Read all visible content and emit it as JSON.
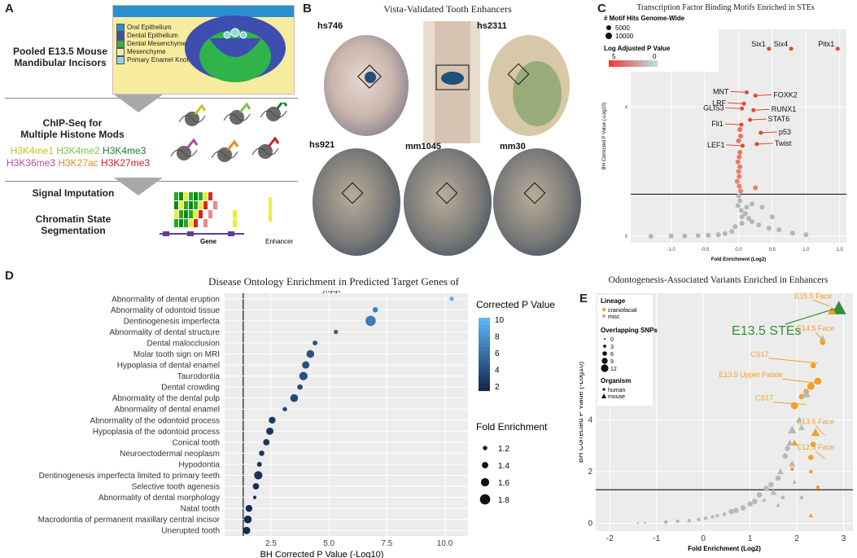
{
  "panel_letters": [
    "A",
    "B",
    "C",
    "D",
    "E"
  ],
  "panelA": {
    "title_line1": "Pooled E13.5 Mouse",
    "title_line2": "Mandibular Incisors",
    "legend": [
      {
        "label": "Oral Epithelium",
        "color": "#2a8fd0"
      },
      {
        "label": "Dental Epithelium",
        "color": "#3d4db0"
      },
      {
        "label": "Dental Mesenchyme",
        "color": "#2fb34a"
      },
      {
        "label": "Mesenchyme",
        "color": "#f7ec9e"
      },
      {
        "label": "Primary Enamel Knot",
        "color": "#8fd3e8"
      }
    ],
    "chip_line1": "ChIP-Seq for",
    "chip_line2": "Multiple Histone Mods",
    "marks": [
      {
        "label": "H3K4me1",
        "color": "#c8c21a"
      },
      {
        "label": "H3K4me2",
        "color": "#7cc04a"
      },
      {
        "label": "H3K4me3",
        "color": "#1f7a2c"
      },
      {
        "label": "H3K36me3",
        "color": "#b04aa8"
      },
      {
        "label": "H3K27ac",
        "color": "#e88a20"
      },
      {
        "label": "H3K27me3",
        "color": "#d02020"
      }
    ],
    "signal": "Signal Imputation",
    "chromatin_line1": "Chromatin State",
    "chromatin_line2": "Segmentation",
    "gene_label": "Gene",
    "enhancer_label": "Enhancer"
  },
  "panelB": {
    "title": "Vista-Validated Tooth Enhancers",
    "embryos": [
      "hs746",
      "hs2311",
      "hs921",
      "mm1045",
      "mm30"
    ]
  },
  "chart_data": [
    {
      "id": "C",
      "type": "scatter",
      "title": "Transcription Factor Binding Motifs Enriched in STEs",
      "xlabel": "Fold Enrichment (Log2)",
      "ylabel": "BH Corrected P Value (-Log10)",
      "xlim": [
        -1.6,
        1.6
      ],
      "ylim": [
        -0.2,
        6.4
      ],
      "xticks": [
        -1.0,
        -0.5,
        0.0,
        0.5,
        1.0,
        1.5
      ],
      "xtick_labels": [
        "-1.0",
        "-0.5",
        "0.0",
        "0.5",
        "1.0",
        "1.5"
      ],
      "yticks": [
        0,
        4
      ],
      "ytick_labels": [
        "0",
        "4"
      ],
      "threshold_y": 1.3,
      "legend_size_title": "# Motif Hits Genome-Wide",
      "legend_sizes": [
        "5000",
        "10000"
      ],
      "legend_color_title": "Log Adjusted P Value",
      "legend_color_range": [
        "5",
        "0"
      ],
      "labeled_points": [
        {
          "label": "Six1",
          "x": 0.45,
          "y": 5.8
        },
        {
          "label": "Six4",
          "x": 0.78,
          "y": 5.8
        },
        {
          "label": "Pitx1",
          "x": 1.47,
          "y": 5.8
        },
        {
          "label": "MNT",
          "x": 0.12,
          "y": 4.45
        },
        {
          "label": "FOXK2",
          "x": 0.25,
          "y": 4.35
        },
        {
          "label": "LRF",
          "x": 0.08,
          "y": 4.1
        },
        {
          "label": "GLIS3",
          "x": 0.05,
          "y": 3.95
        },
        {
          "label": "RUNX1",
          "x": 0.22,
          "y": 3.9
        },
        {
          "label": "STAT6",
          "x": 0.17,
          "y": 3.6
        },
        {
          "label": "Fli1",
          "x": 0.04,
          "y": 3.45
        },
        {
          "label": "p53",
          "x": 0.33,
          "y": 3.2
        },
        {
          "label": "LEF1",
          "x": 0.06,
          "y": 2.8
        },
        {
          "label": "Twist",
          "x": 0.27,
          "y": 2.85
        }
      ],
      "points": [
        {
          "x": 0.02,
          "y": 3.3
        },
        {
          "x": 0.03,
          "y": 3.1
        },
        {
          "x": 0.0,
          "y": 2.95
        },
        {
          "x": 0.02,
          "y": 2.6
        },
        {
          "x": 0.01,
          "y": 2.45
        },
        {
          "x": -0.01,
          "y": 2.3
        },
        {
          "x": 0.02,
          "y": 2.15
        },
        {
          "x": 0.0,
          "y": 2.0
        },
        {
          "x": 0.01,
          "y": 1.85
        },
        {
          "x": -0.02,
          "y": 1.7
        },
        {
          "x": 0.01,
          "y": 1.55
        },
        {
          "x": 0.03,
          "y": 1.4
        },
        {
          "x": 0.0,
          "y": 1.25
        },
        {
          "x": 0.02,
          "y": 1.1
        },
        {
          "x": -0.01,
          "y": 0.95
        },
        {
          "x": 0.04,
          "y": 0.8
        },
        {
          "x": 0.1,
          "y": 0.7
        },
        {
          "x": 0.15,
          "y": 0.55
        },
        {
          "x": 0.2,
          "y": 0.45
        },
        {
          "x": 0.3,
          "y": 0.35
        },
        {
          "x": 0.45,
          "y": 0.25
        },
        {
          "x": 0.6,
          "y": 0.2
        },
        {
          "x": 0.2,
          "y": 1.0
        },
        {
          "x": 0.25,
          "y": 1.5
        },
        {
          "x": 0.05,
          "y": 0.4
        },
        {
          "x": -0.05,
          "y": 0.3
        },
        {
          "x": -0.1,
          "y": 0.15
        },
        {
          "x": -0.2,
          "y": 0.08
        },
        {
          "x": -0.3,
          "y": 0.05
        },
        {
          "x": -0.45,
          "y": 0.03
        },
        {
          "x": -0.6,
          "y": 0.02
        },
        {
          "x": -0.8,
          "y": 0.01
        },
        {
          "x": -1.0,
          "y": 0.01
        },
        {
          "x": -1.3,
          "y": 0.0
        },
        {
          "x": 0.8,
          "y": 0.1
        },
        {
          "x": 1.0,
          "y": 0.05
        },
        {
          "x": 0.05,
          "y": 0.6
        },
        {
          "x": 0.12,
          "y": 0.9
        },
        {
          "x": 0.35,
          "y": 0.9
        },
        {
          "x": 0.5,
          "y": 0.6
        }
      ]
    },
    {
      "id": "D",
      "type": "dot",
      "title": "Disease Ontology Enrichment in Predicted Target Genes of STEs",
      "xlabel": "BH Corrected P Value (-Log10)",
      "xlim": [
        0.5,
        11.0
      ],
      "xticks": [
        2.5,
        5.0,
        7.5,
        10.0
      ],
      "xtick_labels": [
        "2.5",
        "5.0",
        "7.5",
        "10.0"
      ],
      "threshold_x": 1.3,
      "color_legend_title": "Corrected P Value",
      "color_legend_ticks": [
        "10",
        "8",
        "6",
        "4",
        "2"
      ],
      "size_legend_title": "Fold Enrichment",
      "size_legend_labels": [
        "1.2",
        "1.4",
        "1.6",
        "1.8"
      ],
      "terms": [
        {
          "label": "Abnormality of dental eruption",
          "p": 10.3,
          "fe": 1.2
        },
        {
          "label": "Abnormality of odontoid tissue",
          "p": 7.0,
          "fe": 1.3
        },
        {
          "label": "Dentinogenesis imperfecta",
          "p": 6.8,
          "fe": 1.8
        },
        {
          "label": "Abnormality of dental structure",
          "p": 5.3,
          "fe": 1.2
        },
        {
          "label": "Dental malocclusion",
          "p": 4.4,
          "fe": 1.25
        },
        {
          "label": "Molar tooth sign on MRI",
          "p": 4.2,
          "fe": 1.55
        },
        {
          "label": "Hypoplasia of dental enamel",
          "p": 4.0,
          "fe": 1.5
        },
        {
          "label": "Taurodontia",
          "p": 3.9,
          "fe": 1.6
        },
        {
          "label": "Dental crowding",
          "p": 3.75,
          "fe": 1.3
        },
        {
          "label": "Abnormality of the dental pulp",
          "p": 3.5,
          "fe": 1.55
        },
        {
          "label": "Abnormality of dental enamel",
          "p": 3.1,
          "fe": 1.2
        },
        {
          "label": "Abnormality of the odontoid process",
          "p": 2.55,
          "fe": 1.45
        },
        {
          "label": "Hypoplasia of the odontoid process",
          "p": 2.45,
          "fe": 1.5
        },
        {
          "label": "Conical tooth",
          "p": 2.3,
          "fe": 1.4
        },
        {
          "label": "Neuroectodermal neoplasm",
          "p": 2.1,
          "fe": 1.3
        },
        {
          "label": "Hypodontia",
          "p": 2.0,
          "fe": 1.25
        },
        {
          "label": "Dentinogenesis imperfecta limited to primary teeth",
          "p": 1.95,
          "fe": 1.6
        },
        {
          "label": "Selective tooth agenesis",
          "p": 1.85,
          "fe": 1.4
        },
        {
          "label": "Abnormality of dental morphology",
          "p": 1.8,
          "fe": 1.1
        },
        {
          "label": "Natal tooth",
          "p": 1.55,
          "fe": 1.45
        },
        {
          "label": "Macrodontia of permanent maxillary central incisor",
          "p": 1.5,
          "fe": 1.55
        },
        {
          "label": "Unerupted tooth",
          "p": 1.45,
          "fe": 1.5
        }
      ]
    },
    {
      "id": "E",
      "type": "scatter",
      "title": "Odontogenesis-Associated Variants Enriched in Enhancers",
      "xlabel": "Fold Enrichment (Log2)",
      "ylabel": "BH Corrected P Value (-Log10)",
      "xlim": [
        -2.3,
        3.2
      ],
      "ylim": [
        -0.3,
        8.9
      ],
      "xticks": [
        -2,
        -1,
        0,
        1,
        2,
        3
      ],
      "xtick_labels": [
        "-2",
        "-1",
        "0",
        "1",
        "2",
        "3"
      ],
      "yticks": [
        0,
        2,
        4
      ],
      "ytick_labels": [
        "0",
        "2",
        "4"
      ],
      "threshold_y": 1.3,
      "legend": {
        "lineage_title": "Lineage",
        "lineage": [
          {
            "label": "craniofacial",
            "color": "#f5a020"
          },
          {
            "label": "misc",
            "color": "#b8b8b8"
          }
        ],
        "snps_title": "Overlapping SNPs",
        "snps": [
          "0",
          "3",
          "6",
          "9",
          "12"
        ],
        "organism_title": "Organism",
        "organism": [
          "human",
          "mouse"
        ]
      },
      "highlight_label": "E13.5 STEs",
      "annotations": [
        {
          "label": "E15.5 Face",
          "x": 2.7,
          "y": 8.4
        },
        {
          "label": "E14.5 Face",
          "x": 2.6,
          "y": 7.0
        },
        {
          "label": "CS17",
          "x": 2.45,
          "y": 6.2
        },
        {
          "label": "E13.5 Upper Palate",
          "x": 2.5,
          "y": 5.4
        },
        {
          "label": "CS17",
          "x": 2.2,
          "y": 4.6
        },
        {
          "label": "E13.5 Face",
          "x": 2.6,
          "y": 3.4
        },
        {
          "label": "E12.5 Face",
          "x": 2.6,
          "y": 2.5
        }
      ],
      "points": [
        {
          "x": 2.9,
          "y": 8.3,
          "lin": "cf",
          "org": "mouse",
          "s": 12,
          "hi": true
        },
        {
          "x": 2.75,
          "y": 8.2,
          "lin": "cf",
          "org": "mouse",
          "s": 9
        },
        {
          "x": 2.55,
          "y": 7.0,
          "lin": "cf",
          "org": "human",
          "s": 6
        },
        {
          "x": 2.35,
          "y": 6.1,
          "lin": "cf",
          "org": "human",
          "s": 6
        },
        {
          "x": 2.45,
          "y": 5.5,
          "lin": "cf",
          "org": "human",
          "s": 9
        },
        {
          "x": 2.3,
          "y": 5.3,
          "lin": "cf",
          "org": "human",
          "s": 9
        },
        {
          "x": 2.2,
          "y": 5.1,
          "lin": "cf",
          "org": "human",
          "s": 6
        },
        {
          "x": 2.1,
          "y": 4.9,
          "lin": "cf",
          "org": "human",
          "s": 6
        },
        {
          "x": 1.95,
          "y": 4.55,
          "lin": "cf",
          "org": "human",
          "s": 9
        },
        {
          "x": 2.4,
          "y": 3.5,
          "lin": "cf",
          "org": "mouse",
          "s": 9
        },
        {
          "x": 2.35,
          "y": 3.05,
          "lin": "cf",
          "org": "human",
          "s": 6
        },
        {
          "x": 2.3,
          "y": 2.55,
          "lin": "cf",
          "org": "human",
          "s": 6
        },
        {
          "x": 2.3,
          "y": 2.0,
          "lin": "cf",
          "org": "human",
          "s": 3
        },
        {
          "x": 1.95,
          "y": 3.1,
          "lin": "cf",
          "org": "mouse",
          "s": 6
        },
        {
          "x": 1.9,
          "y": 2.1,
          "lin": "cf",
          "org": "human",
          "s": 3
        },
        {
          "x": 2.45,
          "y": 1.4,
          "lin": "cf",
          "org": "human",
          "s": 3
        },
        {
          "x": 2.3,
          "y": 0.3,
          "lin": "cf",
          "org": "mouse",
          "s": 3
        },
        {
          "x": 2.55,
          "y": 7.15,
          "lin": "misc",
          "org": "mouse",
          "s": 6
        },
        {
          "x": 2.2,
          "y": 5.0,
          "lin": "misc",
          "org": "mouse",
          "s": 9
        },
        {
          "x": 2.05,
          "y": 4.0,
          "lin": "misc",
          "org": "mouse",
          "s": 6
        },
        {
          "x": 1.9,
          "y": 3.6,
          "lin": "misc",
          "org": "mouse",
          "s": 9
        },
        {
          "x": 2.1,
          "y": 3.7,
          "lin": "misc",
          "org": "mouse",
          "s": 6
        },
        {
          "x": 1.85,
          "y": 3.1,
          "lin": "misc",
          "org": "mouse",
          "s": 6
        },
        {
          "x": 1.8,
          "y": 2.9,
          "lin": "misc",
          "org": "human",
          "s": 6
        },
        {
          "x": 1.75,
          "y": 2.6,
          "lin": "misc",
          "org": "human",
          "s": 6
        },
        {
          "x": 1.9,
          "y": 2.3,
          "lin": "misc",
          "org": "mouse",
          "s": 6
        },
        {
          "x": 1.65,
          "y": 2.0,
          "lin": "misc",
          "org": "mouse",
          "s": 6
        },
        {
          "x": 1.6,
          "y": 1.75,
          "lin": "misc",
          "org": "human",
          "s": 6
        },
        {
          "x": 1.45,
          "y": 1.5,
          "lin": "misc",
          "org": "human",
          "s": 6
        },
        {
          "x": 1.35,
          "y": 1.35,
          "lin": "misc",
          "org": "human",
          "s": 6
        },
        {
          "x": 1.5,
          "y": 1.2,
          "lin": "misc",
          "org": "mouse",
          "s": 6
        },
        {
          "x": 1.2,
          "y": 1.1,
          "lin": "misc",
          "org": "human",
          "s": 6
        },
        {
          "x": 1.3,
          "y": 0.9,
          "lin": "misc",
          "org": "mouse",
          "s": 3
        },
        {
          "x": 1.1,
          "y": 0.85,
          "lin": "misc",
          "org": "human",
          "s": 6
        },
        {
          "x": 1.0,
          "y": 0.75,
          "lin": "misc",
          "org": "human",
          "s": 6
        },
        {
          "x": 0.85,
          "y": 0.6,
          "lin": "misc",
          "org": "human",
          "s": 6
        },
        {
          "x": 0.7,
          "y": 0.5,
          "lin": "misc",
          "org": "human",
          "s": 6
        },
        {
          "x": 0.6,
          "y": 0.45,
          "lin": "misc",
          "org": "human",
          "s": 6
        },
        {
          "x": 0.45,
          "y": 0.35,
          "lin": "misc",
          "org": "human",
          "s": 3
        },
        {
          "x": 0.3,
          "y": 0.3,
          "lin": "misc",
          "org": "human",
          "s": 3
        },
        {
          "x": 0.2,
          "y": 0.25,
          "lin": "misc",
          "org": "human",
          "s": 3
        },
        {
          "x": 0.05,
          "y": 0.2,
          "lin": "misc",
          "org": "human",
          "s": 3
        },
        {
          "x": -0.1,
          "y": 0.15,
          "lin": "misc",
          "org": "human",
          "s": 3
        },
        {
          "x": -0.3,
          "y": 0.1,
          "lin": "misc",
          "org": "human",
          "s": 3
        },
        {
          "x": -0.55,
          "y": 0.08,
          "lin": "misc",
          "org": "human",
          "s": 3
        },
        {
          "x": -0.8,
          "y": 0.05,
          "lin": "misc",
          "org": "human",
          "s": 3
        },
        {
          "x": -1.25,
          "y": 0.02,
          "lin": "misc",
          "org": "human",
          "s": 0
        },
        {
          "x": -1.4,
          "y": 0.01,
          "lin": "misc",
          "org": "human",
          "s": 0
        },
        {
          "x": 1.6,
          "y": 0.7,
          "lin": "misc",
          "org": "mouse",
          "s": 3
        },
        {
          "x": 1.95,
          "y": 1.6,
          "lin": "misc",
          "org": "mouse",
          "s": 3
        },
        {
          "x": 2.1,
          "y": 1.0,
          "lin": "misc",
          "org": "human",
          "s": 3
        },
        {
          "x": 1.7,
          "y": 1.0,
          "lin": "misc",
          "org": "human",
          "s": 3
        }
      ]
    }
  ]
}
